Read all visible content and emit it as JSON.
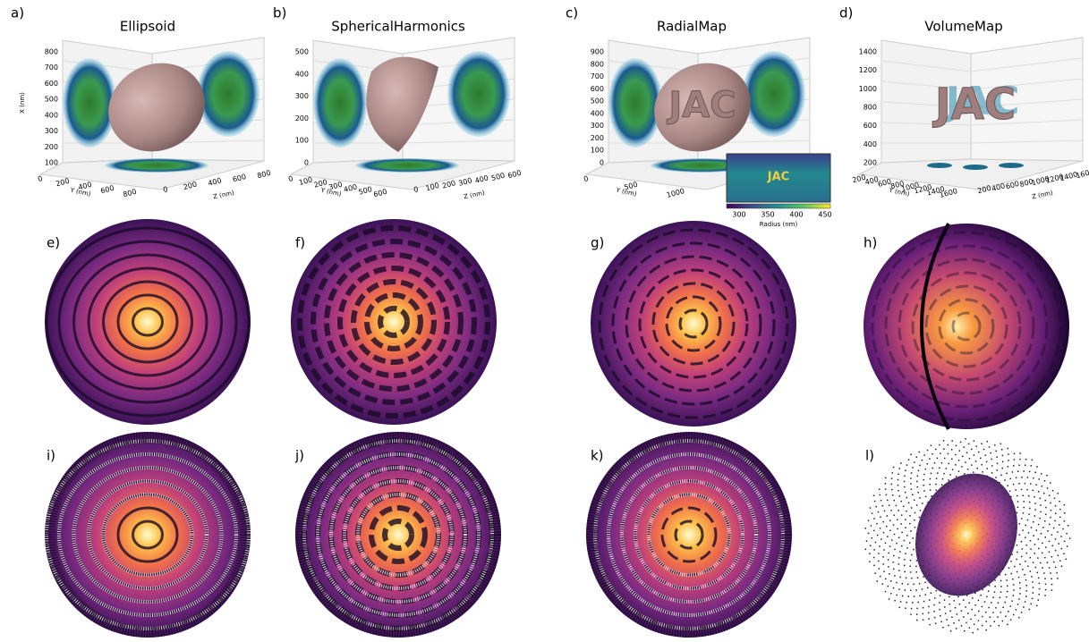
{
  "panels_3d": [
    {
      "label": "a)",
      "title": "Ellipsoid",
      "x_axis": {
        "label": "X (nm)",
        "ticks": [
          800,
          700,
          600,
          500,
          400,
          300,
          200,
          100
        ]
      },
      "y_axis": {
        "label": "Y (nm)",
        "ticks": [
          0,
          200,
          400,
          600,
          800
        ]
      },
      "z_axis": {
        "label": "Z (nm)",
        "ticks": [
          0,
          200,
          400,
          600,
          800
        ]
      }
    },
    {
      "label": "b)",
      "title": "SphericalHarmonics",
      "x_axis": {
        "ticks": [
          500,
          400,
          300,
          200,
          100,
          0
        ]
      },
      "y_axis": {
        "label": "Y (nm)",
        "ticks": [
          0,
          100,
          200,
          300,
          400,
          500,
          600
        ]
      },
      "z_axis": {
        "label": "Z (nm)",
        "ticks": [
          0,
          100,
          200,
          300,
          400,
          500,
          600
        ]
      }
    },
    {
      "label": "c)",
      "title": "RadialMap",
      "shape_text": "JAC",
      "x_axis": {
        "ticks": [
          900,
          800,
          700,
          600,
          500,
          400,
          300,
          200,
          100,
          0
        ]
      },
      "y_axis": {
        "label": "Y (nm)",
        "ticks": [
          0,
          500,
          1000
        ]
      }
    },
    {
      "label": "d)",
      "title": "VolumeMap",
      "shape_text": "JAC",
      "x_axis": {
        "ticks": [
          1400,
          1200,
          1000,
          800,
          600,
          400,
          200
        ]
      },
      "y_axis": {
        "label": "Y (nm)",
        "ticks": [
          200,
          400,
          600,
          800,
          1000,
          1200,
          1400,
          1600
        ]
      },
      "z_axis": {
        "label": "Z (nm)",
        "ticks": [
          200,
          400,
          600,
          800,
          1000,
          1200,
          1400,
          "160"
        ]
      }
    }
  ],
  "inset": {
    "text": "JAC",
    "colorbar_label": "Radius (nm)",
    "colorbar_ticks": [
      300,
      350,
      400,
      450
    ]
  },
  "panels_2d": [
    {
      "label": "e)"
    },
    {
      "label": "f)"
    },
    {
      "label": "g)"
    },
    {
      "label": "h)"
    },
    {
      "label": "i)"
    },
    {
      "label": "j)"
    },
    {
      "label": "k)"
    },
    {
      "label": "l)"
    }
  ]
}
